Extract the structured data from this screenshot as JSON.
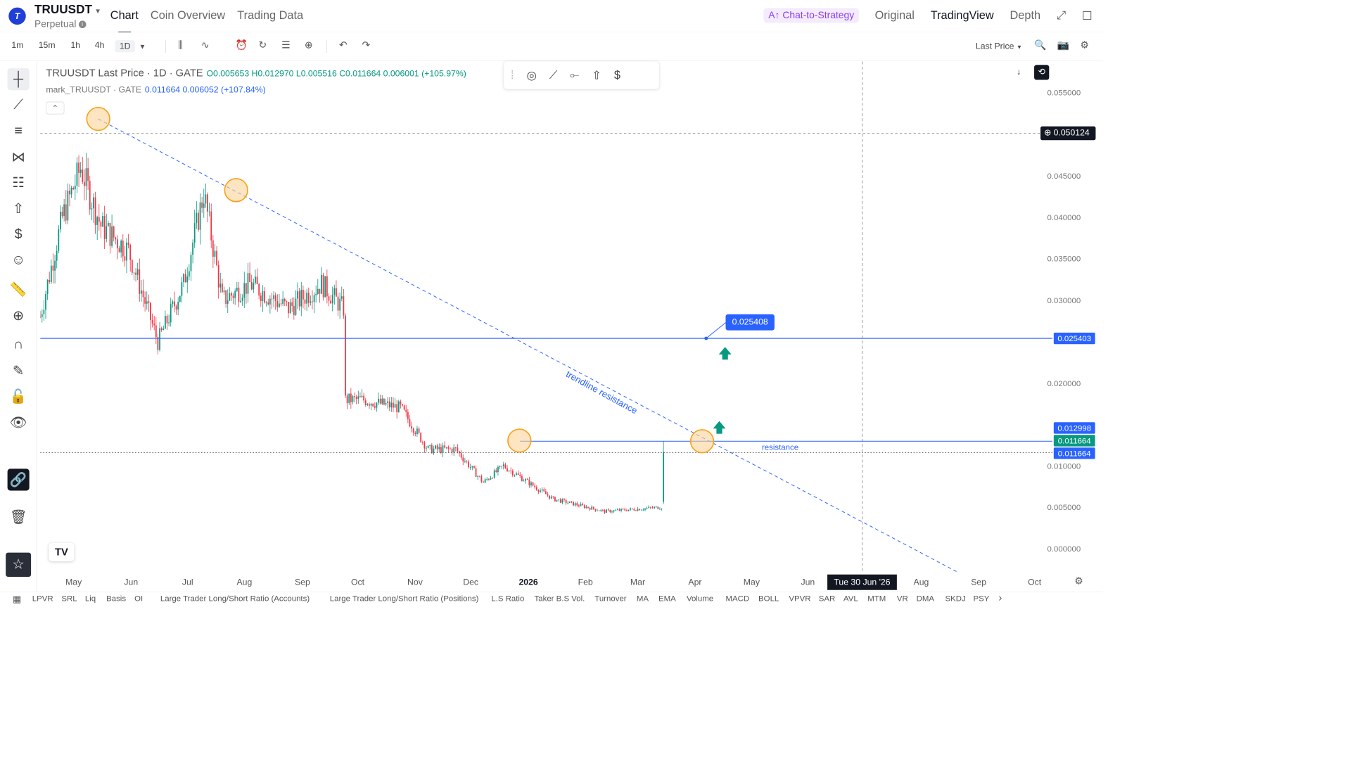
{
  "header": {
    "symbol": "TRUUSDT",
    "type": "Perpetual",
    "tabs": [
      "Chart",
      "Coin Overview",
      "Trading Data"
    ],
    "chat_strategy": "Chat-to-Strategy",
    "views": [
      "Original",
      "TradingView",
      "Depth"
    ]
  },
  "toolbar": {
    "timeframes": [
      "1m",
      "15m",
      "1h",
      "4h",
      "1D"
    ],
    "price_source": "Last Price"
  },
  "legend": {
    "title": "TRUUSDT Last Price · 1D · GATE",
    "ohlc": "O0.005653 H0.012970 L0.005516 C0.011664 0.006001 (+105.97%)",
    "mark_label": "mark_TRUUSDT · GATE",
    "mark_values": "0.011664 0.006052 (+107.84%)"
  },
  "chart": {
    "price_labels": [
      "0.055000",
      "0.045000",
      "0.040000",
      "0.035000",
      "0.030000",
      "0.020000",
      "0.010000",
      "0.005000",
      "0.000000"
    ],
    "crosshair_price": "0.050124",
    "line_price": "0.025403",
    "resistance_price": "0.012998",
    "last_price": "0.011664",
    "mark_price": "0.011664",
    "callout": "0.025408",
    "resistance_label": "resistance",
    "trend_label": "trendline resistance",
    "time_labels": [
      "May",
      "Jun",
      "Jul",
      "Aug",
      "Sep",
      "Oct",
      "Nov",
      "Dec",
      "2026",
      "Feb",
      "Mar",
      "Apr",
      "May",
      "Jun",
      "Aug",
      "Sep",
      "Oct"
    ],
    "time_badge": "Tue 30 Jun '26",
    "colors": {
      "up": "#089981",
      "down": "#f23645",
      "line": "#2962ff",
      "circle": "#f7a21b"
    }
  },
  "chart_data": {
    "type": "candlestick",
    "title": "TRUUSDT Last Price · 1D · GATE",
    "x_range": [
      "2025-05",
      "2026-10"
    ],
    "ylim": [
      0,
      0.057
    ],
    "close_path": [
      {
        "x": "2025-04-28",
        "y": 0.028
      },
      {
        "x": "2025-05-10",
        "y": 0.04
      },
      {
        "x": "2025-05-20",
        "y": 0.046
      },
      {
        "x": "2025-05-31",
        "y": 0.039
      },
      {
        "x": "2025-06-15",
        "y": 0.036
      },
      {
        "x": "2025-07-01",
        "y": 0.025
      },
      {
        "x": "2025-07-15",
        "y": 0.032
      },
      {
        "x": "2025-07-26",
        "y": 0.043
      },
      {
        "x": "2025-08-05",
        "y": 0.03
      },
      {
        "x": "2025-08-20",
        "y": 0.032
      },
      {
        "x": "2025-09-10",
        "y": 0.029
      },
      {
        "x": "2025-09-28",
        "y": 0.032
      },
      {
        "x": "2025-10-10",
        "y": 0.029
      },
      {
        "x": "2025-10-11",
        "y": 0.018
      },
      {
        "x": "2025-10-20",
        "y": 0.018
      },
      {
        "x": "2025-11-10",
        "y": 0.017
      },
      {
        "x": "2025-11-25",
        "y": 0.012
      },
      {
        "x": "2025-12-10",
        "y": 0.012
      },
      {
        "x": "2025-12-25",
        "y": 0.008
      },
      {
        "x": "2026-01-05",
        "y": 0.01
      },
      {
        "x": "2026-02-01",
        "y": 0.006
      },
      {
        "x": "2026-03-01",
        "y": 0.0045
      },
      {
        "x": "2026-04-01",
        "y": 0.005
      },
      {
        "x": "2026-04-02",
        "y": 0.011664
      }
    ],
    "horizontal_lines": [
      {
        "name": "line",
        "value": 0.025403
      },
      {
        "name": "resistance",
        "value": 0.012998
      }
    ]
  },
  "indicators": [
    "LPVR",
    "SRL",
    "Liq",
    "Basis",
    "OI",
    "Large Trader Long/Short Ratio (Accounts)",
    "Large Trader Long/Short Ratio (Positions)",
    "L.S Ratio",
    "Taker B.S Vol.",
    "Turnover",
    "MA",
    "EMA",
    "Volume",
    "MACD",
    "BOLL",
    "VPVR",
    "SAR",
    "AVL",
    "MTM",
    "VR",
    "DMA",
    "SKDJ",
    "PSY"
  ]
}
